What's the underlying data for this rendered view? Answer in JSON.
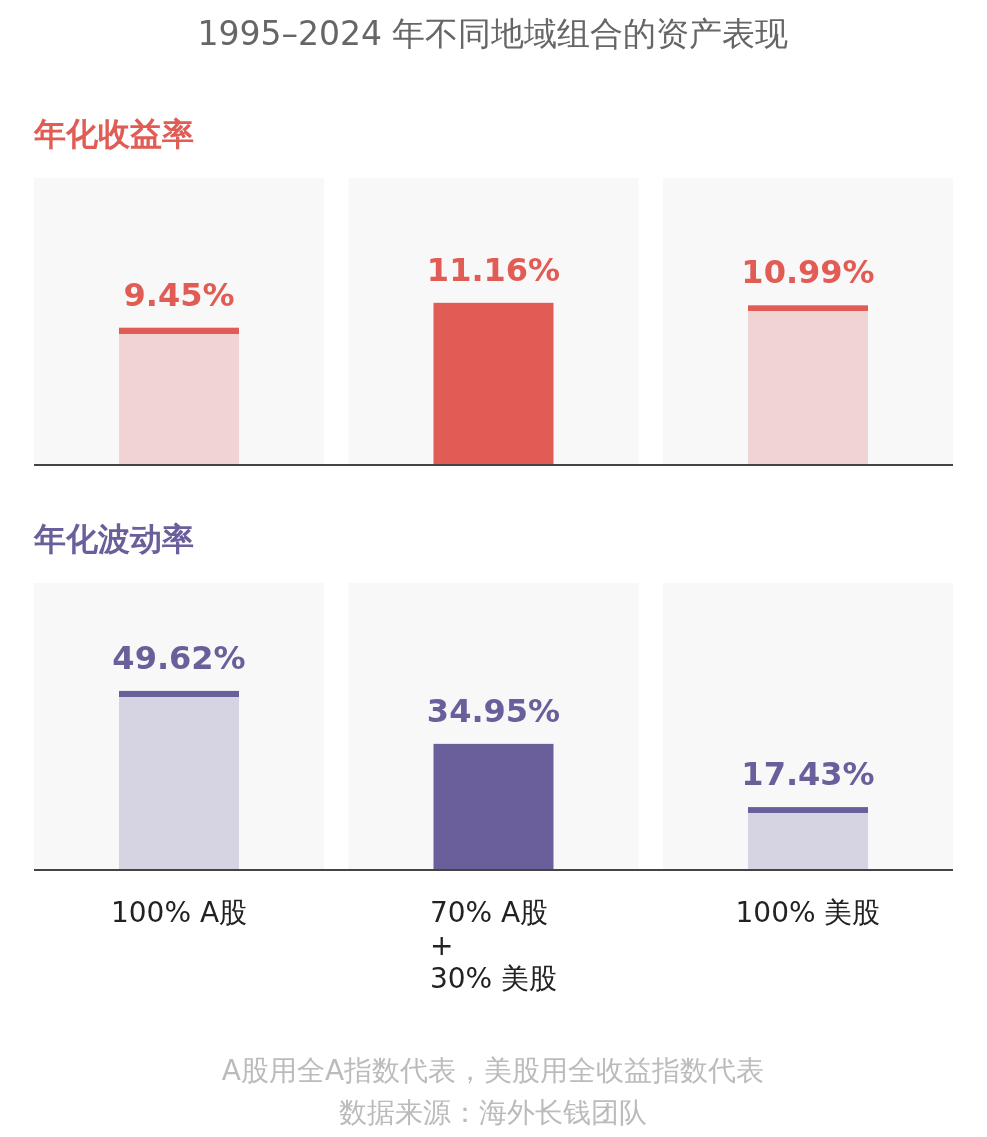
{
  "chart_data": [
    {
      "type": "bar",
      "title": "1995–2024 年不同地域组合的资产表现",
      "subtitle": "年化收益率",
      "categories": [
        "100% A股",
        "70% A股\n+\n30% 美股",
        "100% 美股"
      ],
      "tick_labels": false,
      "bands": [
        {
          "axis": "x",
          "from": "100% A股",
          "to": "100% A股",
          "color": "#f8f8f8"
        },
        {
          "axis": "x",
          "from": "70% A股\n+\n30% 美股",
          "to": "70% A股\n+\n30% 美股",
          "color": "#f8f8f8"
        },
        {
          "axis": "x",
          "from": "100% 美股",
          "to": "100% 美股",
          "color": "#f8f8f8"
        }
      ],
      "series": [
        {
          "color": "#e05c55",
          "colors": [
            "#f2d3d3",
            "#e05c55",
            "#f2d3d3"
          ],
          "values": [
            9.45,
            11.16,
            10.99
          ],
          "value_labels": [
            "9.45%",
            "11.16%",
            "10.99%"
          ]
        }
      ]
    },
    {
      "type": "bar",
      "title": "年化波动率",
      "categories": [
        "100% A股",
        "70% A股\n+\n30% 美股",
        "100% 美股"
      ],
      "tick_labels": "x",
      "bands": [
        {
          "axis": "x",
          "from": "100% A股",
          "to": "100% A股",
          "color": "#f8f8f8"
        },
        {
          "axis": "x",
          "from": "70% A股\n+\n30% 美股",
          "to": "70% A股\n+\n30% 美股",
          "color": "#f8f8f8"
        },
        {
          "axis": "x",
          "from": "100% 美股",
          "to": "100% 美股",
          "color": "#f8f8f8"
        }
      ],
      "series": [
        {
          "color": "#6a5f9b",
          "colors": [
            "#d6d3e3",
            "#6a5f9b",
            "#d6d3e3"
          ],
          "values": [
            49.62,
            34.95,
            17.43
          ],
          "value_labels": [
            "49.62%",
            "34.95%",
            "17.43%"
          ]
        }
      ],
      "annotations": [
        "A股用全A指数代表，美股用全收益指数代表",
        "数据来源：海外长钱团队"
      ]
    }
  ]
}
